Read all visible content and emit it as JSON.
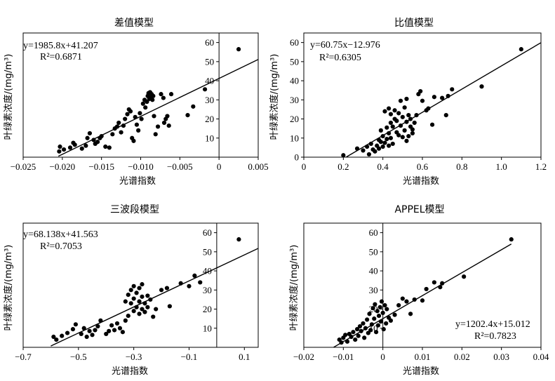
{
  "chart_data": [
    {
      "type": "scatter",
      "title": "差值模型",
      "xlabel": "光谱指数",
      "ylabel": "叶绿素浓度/(mg/m³)",
      "xlim": [
        -0.025,
        0.005
      ],
      "ylim": [
        0,
        65
      ],
      "x_ticks": [
        "−0.025",
        "−0.020",
        "−0.015",
        "−0.010",
        "−0.005",
        "0",
        "0.005"
      ],
      "x_tick_values": [
        -0.025,
        -0.02,
        -0.015,
        -0.01,
        -0.005,
        0,
        0.005
      ],
      "y_ticks": [
        "10",
        "20",
        "30",
        "40",
        "50",
        "60"
      ],
      "y_tick_values": [
        10,
        20,
        30,
        40,
        50,
        60
      ],
      "y_axis_at_x": 0,
      "equation": "y=1985.8x+41.207",
      "r2": "R²=0.6871",
      "fit": {
        "slope": 1985.8,
        "intercept": 41.207,
        "x_range": [
          -0.0205,
          0.005
        ]
      },
      "points": [
        [
          -0.0204,
          3.0
        ],
        [
          -0.0203,
          5.5
        ],
        [
          -0.0198,
          4.0
        ],
        [
          -0.019,
          5.0
        ],
        [
          -0.0186,
          7.5
        ],
        [
          -0.0184,
          6.5
        ],
        [
          -0.0175,
          4.5
        ],
        [
          -0.017,
          6.0
        ],
        [
          -0.0168,
          10.0
        ],
        [
          -0.0165,
          12.5
        ],
        [
          -0.016,
          9.0
        ],
        [
          -0.0158,
          7.0
        ],
        [
          -0.0155,
          8.0
        ],
        [
          -0.0152,
          10.0
        ],
        [
          -0.015,
          11.0
        ],
        [
          -0.0145,
          5.5
        ],
        [
          -0.014,
          5.0
        ],
        [
          -0.0136,
          12.0
        ],
        [
          -0.0133,
          15.0
        ],
        [
          -0.013,
          16.0
        ],
        [
          -0.0128,
          18.0
        ],
        [
          -0.0125,
          13.0
        ],
        [
          -0.0122,
          16.5
        ],
        [
          -0.012,
          20.0
        ],
        [
          -0.0117,
          22.5
        ],
        [
          -0.0115,
          25.0
        ],
        [
          -0.0113,
          24.0
        ],
        [
          -0.0111,
          10.0
        ],
        [
          -0.0109,
          8.5
        ],
        [
          -0.0107,
          21.0
        ],
        [
          -0.0105,
          17.0
        ],
        [
          -0.0103,
          14.0
        ],
        [
          -0.0101,
          23.0
        ],
        [
          -0.0099,
          20.0
        ],
        [
          -0.0097,
          28.0
        ],
        [
          -0.0095,
          30.0
        ],
        [
          -0.0094,
          26.0
        ],
        [
          -0.0092,
          29.0
        ],
        [
          -0.0091,
          32.0
        ],
        [
          -0.009,
          33.5
        ],
        [
          -0.0089,
          30.5
        ],
        [
          -0.0088,
          34.0
        ],
        [
          -0.0087,
          31.5
        ],
        [
          -0.0086,
          33.0
        ],
        [
          -0.0085,
          30.0
        ],
        [
          -0.0084,
          32.0
        ],
        [
          -0.0083,
          21.5
        ],
        [
          -0.0081,
          12.0
        ],
        [
          -0.0078,
          16.0
        ],
        [
          -0.0074,
          33.0
        ],
        [
          -0.0071,
          31.0
        ],
        [
          -0.007,
          18.0
        ],
        [
          -0.0068,
          20.0
        ],
        [
          -0.0066,
          21.5
        ],
        [
          -0.0064,
          16.5
        ],
        [
          -0.0061,
          33.0
        ],
        [
          -0.004,
          22.0
        ],
        [
          -0.0033,
          26.5
        ],
        [
          -0.0018,
          35.5
        ],
        [
          0.0025,
          56.5
        ]
      ]
    },
    {
      "type": "scatter",
      "title": "比值模型",
      "xlabel": "光谱指数",
      "ylabel": "叶绿素浓度/(mg/m³)",
      "xlim": [
        0,
        1.2
      ],
      "ylim": [
        0,
        65
      ],
      "x_ticks": [
        "0",
        "0.2",
        "0.4",
        "0.6",
        "0.8",
        "1.0",
        "1.2"
      ],
      "x_tick_values": [
        0,
        0.2,
        0.4,
        0.6,
        0.8,
        1.0,
        1.2
      ],
      "y_ticks": [
        "0",
        "10",
        "20",
        "30",
        "40",
        "50",
        "60"
      ],
      "y_tick_values": [
        0,
        10,
        20,
        30,
        40,
        50,
        60
      ],
      "y_axis_at_x": 0,
      "equation": "y=60.75x−12.976",
      "r2": "R²=0.6305",
      "fit": {
        "slope": 60.75,
        "intercept": -12.976,
        "x_range": [
          0.215,
          1.2
        ]
      },
      "points": [
        [
          0.2,
          1.0
        ],
        [
          0.27,
          4.5
        ],
        [
          0.3,
          3.5
        ],
        [
          0.32,
          5.5
        ],
        [
          0.33,
          1.5
        ],
        [
          0.34,
          7.0
        ],
        [
          0.35,
          4.0
        ],
        [
          0.36,
          3.0
        ],
        [
          0.37,
          6.0
        ],
        [
          0.38,
          4.5
        ],
        [
          0.38,
          9.0
        ],
        [
          0.39,
          8.0
        ],
        [
          0.39,
          14.0
        ],
        [
          0.4,
          5.5
        ],
        [
          0.4,
          11.0
        ],
        [
          0.41,
          7.5
        ],
        [
          0.41,
          24.0
        ],
        [
          0.42,
          9.5
        ],
        [
          0.42,
          15.5
        ],
        [
          0.43,
          6.0
        ],
        [
          0.43,
          12.5
        ],
        [
          0.43,
          25.5
        ],
        [
          0.44,
          10.0
        ],
        [
          0.44,
          18.0
        ],
        [
          0.44,
          22.5
        ],
        [
          0.45,
          7.0
        ],
        [
          0.45,
          16.0
        ],
        [
          0.46,
          20.0
        ],
        [
          0.46,
          24.5
        ],
        [
          0.47,
          13.0
        ],
        [
          0.47,
          19.0
        ],
        [
          0.48,
          11.5
        ],
        [
          0.48,
          23.0
        ],
        [
          0.49,
          16.5
        ],
        [
          0.49,
          29.5
        ],
        [
          0.5,
          10.5
        ],
        [
          0.5,
          21.0
        ],
        [
          0.51,
          14.0
        ],
        [
          0.51,
          26.0
        ],
        [
          0.52,
          8.5
        ],
        [
          0.52,
          18.5
        ],
        [
          0.52,
          30.5
        ],
        [
          0.53,
          11.0
        ],
        [
          0.53,
          22.0
        ],
        [
          0.54,
          16.0
        ],
        [
          0.54,
          20.0
        ],
        [
          0.55,
          14.5
        ],
        [
          0.55,
          12.5
        ],
        [
          0.56,
          18.0
        ],
        [
          0.57,
          22.0
        ],
        [
          0.58,
          33.0
        ],
        [
          0.59,
          34.5
        ],
        [
          0.6,
          29.5
        ],
        [
          0.62,
          24.5
        ],
        [
          0.63,
          25.5
        ],
        [
          0.65,
          17.0
        ],
        [
          0.66,
          31.5
        ],
        [
          0.7,
          31.0
        ],
        [
          0.72,
          22.0
        ],
        [
          0.73,
          32.0
        ],
        [
          0.75,
          35.5
        ],
        [
          0.9,
          37.0
        ],
        [
          1.1,
          56.5
        ]
      ]
    },
    {
      "type": "scatter",
      "title": "三波段模型",
      "xlabel": "光谱指数",
      "ylabel": "叶绿素浓度/(mg/m³)",
      "xlim": [
        -0.7,
        0.15
      ],
      "ylim": [
        0,
        65
      ],
      "x_ticks": [
        "−0.7",
        "−0.5",
        "−0.3",
        "−0.1",
        "0.1"
      ],
      "x_tick_values": [
        -0.7,
        -0.5,
        -0.3,
        -0.1,
        0.1
      ],
      "y_ticks": [
        "10",
        "20",
        "30",
        "40",
        "50",
        "60"
      ],
      "y_tick_values": [
        10,
        20,
        30,
        40,
        50,
        60
      ],
      "y_axis_at_x": 0,
      "equation": "y=68.138x+41.563",
      "r2": "R²=0.7053",
      "fit": {
        "slope": 68.138,
        "intercept": 41.563,
        "x_range": [
          -0.6,
          0.15
        ]
      },
      "points": [
        [
          -0.59,
          5.5
        ],
        [
          -0.58,
          4.0
        ],
        [
          -0.56,
          6.0
        ],
        [
          -0.54,
          7.5
        ],
        [
          -0.52,
          9.5
        ],
        [
          -0.51,
          12.0
        ],
        [
          -0.49,
          7.0
        ],
        [
          -0.48,
          10.0
        ],
        [
          -0.47,
          5.5
        ],
        [
          -0.46,
          8.5
        ],
        [
          -0.45,
          6.5
        ],
        [
          -0.44,
          9.0
        ],
        [
          -0.43,
          11.0
        ],
        [
          -0.42,
          14.0
        ],
        [
          -0.4,
          7.0
        ],
        [
          -0.39,
          8.5
        ],
        [
          -0.38,
          11.5
        ],
        [
          -0.37,
          9.0
        ],
        [
          -0.36,
          12.5
        ],
        [
          -0.35,
          10.0
        ],
        [
          -0.34,
          8.0
        ],
        [
          -0.33,
          14.0
        ],
        [
          -0.33,
          24.0
        ],
        [
          -0.32,
          27.5
        ],
        [
          -0.32,
          16.5
        ],
        [
          -0.31,
          23.0
        ],
        [
          -0.31,
          30.0
        ],
        [
          -0.3,
          19.0
        ],
        [
          -0.3,
          25.5
        ],
        [
          -0.3,
          32.0
        ],
        [
          -0.29,
          21.0
        ],
        [
          -0.29,
          28.5
        ],
        [
          -0.28,
          17.5
        ],
        [
          -0.28,
          24.0
        ],
        [
          -0.28,
          31.0
        ],
        [
          -0.27,
          20.0
        ],
        [
          -0.27,
          26.5
        ],
        [
          -0.27,
          33.0
        ],
        [
          -0.26,
          18.5
        ],
        [
          -0.26,
          23.0
        ],
        [
          -0.25,
          21.0
        ],
        [
          -0.25,
          27.0
        ],
        [
          -0.24,
          25.0
        ],
        [
          -0.23,
          16.0
        ],
        [
          -0.22,
          20.0
        ],
        [
          -0.2,
          30.0
        ],
        [
          -0.18,
          31.0
        ],
        [
          -0.17,
          21.5
        ],
        [
          -0.13,
          33.5
        ],
        [
          -0.1,
          32.0
        ],
        [
          -0.08,
          37.5
        ],
        [
          -0.06,
          34.0
        ],
        [
          0.08,
          56.5
        ]
      ]
    },
    {
      "type": "scatter",
      "title": "APPEL模型",
      "xlabel": "光谱指数",
      "ylabel": "叶绿素浓度/(mg/m³)",
      "xlim": [
        -0.02,
        0.04
      ],
      "ylim": [
        0,
        65
      ],
      "x_ticks": [
        "−0.02",
        "−0.01",
        "0",
        "0.01",
        "0.02",
        "0.03",
        "0.04"
      ],
      "x_tick_values": [
        -0.02,
        -0.01,
        0,
        0.01,
        0.02,
        0.03,
        0.04
      ],
      "y_ticks": [
        "10",
        "20",
        "30",
        "40",
        "50",
        "60"
      ],
      "y_tick_values": [
        10,
        20,
        30,
        40,
        50,
        60
      ],
      "y_axis_at_x": 0,
      "equation": "y=1202.4x+15.012",
      "r2": "R²=0.7823",
      "fit": {
        "slope": 1202.4,
        "intercept": 15.012,
        "x_range": [
          -0.0125,
          0.0325
        ]
      },
      "points": [
        [
          -0.011,
          4.0
        ],
        [
          -0.0105,
          2.5
        ],
        [
          -0.01,
          5.0
        ],
        [
          -0.0095,
          6.5
        ],
        [
          -0.009,
          3.0
        ],
        [
          -0.0085,
          7.0
        ],
        [
          -0.008,
          5.5
        ],
        [
          -0.0075,
          8.0
        ],
        [
          -0.007,
          4.0
        ],
        [
          -0.0065,
          9.5
        ],
        [
          -0.0062,
          6.0
        ],
        [
          -0.0058,
          11.0
        ],
        [
          -0.0055,
          8.5
        ],
        [
          -0.005,
          12.5
        ],
        [
          -0.0047,
          5.0
        ],
        [
          -0.0044,
          10.0
        ],
        [
          -0.004,
          14.5
        ],
        [
          -0.0037,
          7.5
        ],
        [
          -0.0034,
          17.5
        ],
        [
          -0.0031,
          9.0
        ],
        [
          -0.0028,
          12.0
        ],
        [
          -0.0025,
          20.5
        ],
        [
          -0.0022,
          15.0
        ],
        [
          -0.002,
          22.5
        ],
        [
          -0.0017,
          8.0
        ],
        [
          -0.0014,
          19.0
        ],
        [
          -0.0012,
          11.5
        ],
        [
          -0.001,
          16.5
        ],
        [
          -0.0007,
          21.0
        ],
        [
          -0.0005,
          13.5
        ],
        [
          -0.0003,
          24.0
        ],
        [
          0.0,
          18.0
        ],
        [
          0.0002,
          9.5
        ],
        [
          0.0005,
          22.0
        ],
        [
          0.0008,
          12.5
        ],
        [
          0.001,
          20.0
        ],
        [
          0.0015,
          15.5
        ],
        [
          0.002,
          14.0
        ],
        [
          0.003,
          17.0
        ],
        [
          0.004,
          22.0
        ],
        [
          0.005,
          25.5
        ],
        [
          0.006,
          24.0
        ],
        [
          0.007,
          17.5
        ],
        [
          0.008,
          25.0
        ],
        [
          0.01,
          24.5
        ],
        [
          0.011,
          30.5
        ],
        [
          0.013,
          34.0
        ],
        [
          0.0145,
          31.5
        ],
        [
          0.015,
          33.5
        ],
        [
          0.0205,
          37.0
        ],
        [
          0.0325,
          56.5
        ]
      ]
    }
  ]
}
